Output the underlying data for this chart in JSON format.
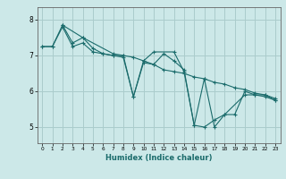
{
  "xlabel": "Humidex (Indice chaleur)",
  "background_color": "#cce8e8",
  "grid_color": "#aacccc",
  "line_color": "#1a6b6b",
  "spine_color": "#666666",
  "xlim": [
    -0.5,
    23.5
  ],
  "ylim": [
    4.55,
    8.35
  ],
  "yticks": [
    5,
    6,
    7,
    8
  ],
  "xticks": [
    0,
    1,
    2,
    3,
    4,
    5,
    6,
    7,
    8,
    9,
    10,
    11,
    12,
    13,
    14,
    15,
    16,
    17,
    18,
    19,
    20,
    21,
    22,
    23
  ],
  "series": [
    {
      "x": [
        0,
        1,
        2,
        3,
        4,
        5,
        6,
        7,
        8,
        9,
        10,
        11,
        12,
        13,
        14,
        15,
        16,
        17,
        18,
        19,
        20,
        21,
        22,
        23
      ],
      "y": [
        7.25,
        7.25,
        7.8,
        7.25,
        7.35,
        7.1,
        7.05,
        7.0,
        6.95,
        5.85,
        6.8,
        6.75,
        7.05,
        6.85,
        6.6,
        5.05,
        5.0,
        5.2,
        5.35,
        5.35,
        6.0,
        5.9,
        5.9,
        5.75
      ]
    },
    {
      "x": [
        0,
        1,
        2,
        3,
        4,
        5,
        6,
        7,
        8,
        9,
        10,
        11,
        12,
        13,
        14,
        15,
        16,
        17,
        18,
        19,
        20,
        21,
        22,
        23
      ],
      "y": [
        7.25,
        7.25,
        7.85,
        7.35,
        7.5,
        7.2,
        7.05,
        7.0,
        7.0,
        6.95,
        6.85,
        6.75,
        6.6,
        6.55,
        6.5,
        6.4,
        6.35,
        6.25,
        6.2,
        6.1,
        6.05,
        5.95,
        5.9,
        5.8
      ]
    },
    {
      "x": [
        2,
        4,
        7,
        8,
        9,
        10,
        11,
        13,
        14,
        15,
        16,
        17,
        18,
        20,
        21,
        22,
        23
      ],
      "y": [
        7.85,
        7.5,
        7.05,
        7.0,
        5.85,
        6.85,
        7.1,
        7.1,
        6.55,
        5.05,
        6.35,
        5.0,
        5.35,
        5.9,
        5.9,
        5.85,
        5.75
      ]
    }
  ]
}
